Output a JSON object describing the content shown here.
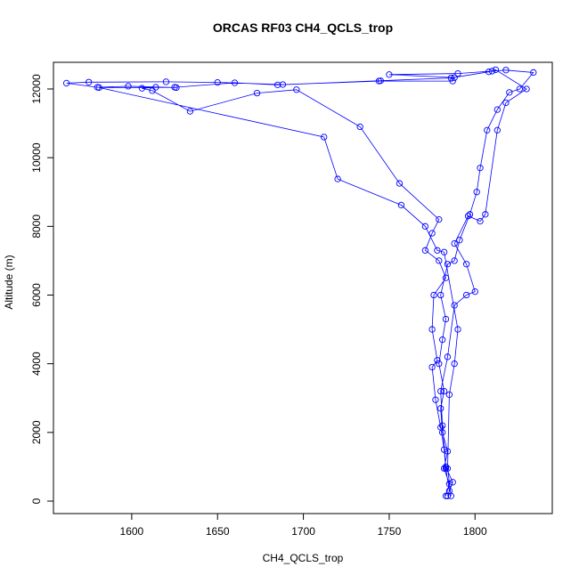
{
  "chart_data": {
    "type": "line",
    "title": "ORCAS RF03 CH4_QCLS_trop",
    "x_label": "CH4_QCLS_trop",
    "y_label": "Altitude (m)",
    "color": "#0000ff",
    "x": [
      1783,
      1785,
      1782,
      1784,
      1781,
      1780,
      1782,
      1779,
      1781,
      1783,
      1780,
      1784,
      1788,
      1791,
      1797,
      1801,
      1803,
      1807,
      1813,
      1820,
      1826,
      1834,
      1818,
      1810,
      1790,
      1750,
      1788,
      1787,
      1744,
      1688,
      1650,
      1620,
      1575,
      1562,
      1580,
      1598,
      1626,
      1614,
      1606,
      1612,
      1634,
      1673,
      1696,
      1733,
      1756,
      1779,
      1775,
      1771,
      1779,
      1783,
      1776,
      1775,
      1778,
      1775,
      1777,
      1780,
      1782,
      1783,
      1785,
      1784,
      1787,
      1783,
      1781,
      1780,
      1784,
      1788,
      1795,
      1800,
      1795,
      1788,
      1796,
      1803,
      1806,
      1813,
      1818,
      1830,
      1812,
      1808,
      1786,
      1745,
      1685,
      1660,
      1625,
      1581,
      1712,
      1720,
      1757,
      1771,
      1778,
      1782,
      1790,
      1788,
      1785,
      1784,
      1786
    ],
    "values": [
      150,
      500,
      950,
      1450,
      2000,
      2700,
      3200,
      4000,
      4700,
      5300,
      6000,
      6900,
      7000,
      7600,
      8350,
      9000,
      9700,
      10800,
      11400,
      11900,
      12000,
      12480,
      12550,
      12520,
      12450,
      12420,
      12330,
      12230,
      12230,
      12130,
      12190,
      12210,
      12200,
      12170,
      12050,
      12080,
      12040,
      12050,
      12020,
      11950,
      11350,
      11880,
      11980,
      10900,
      9250,
      8200,
      7800,
      7300,
      7000,
      6500,
      6000,
      5000,
      4100,
      3900,
      2950,
      2150,
      1500,
      950,
      300,
      150,
      550,
      1000,
      2200,
      3200,
      4200,
      5700,
      6000,
      6100,
      6900,
      7500,
      8300,
      8150,
      8350,
      10800,
      11600,
      12000,
      12560,
      12500,
      12320,
      12240,
      12120,
      12180,
      12050,
      12040,
      10600,
      9380,
      8620,
      8000,
      7300,
      7250,
      5000,
      4000,
      3100,
      950,
      150
    ],
    "xlim": [
      1554.4,
      1845
    ],
    "ylim": [
      -363,
      12777
    ],
    "xticks": [
      1600,
      1650,
      1700,
      1750,
      1800
    ],
    "yticks": [
      0,
      2000,
      4000,
      6000,
      8000,
      10000,
      12000
    ]
  }
}
